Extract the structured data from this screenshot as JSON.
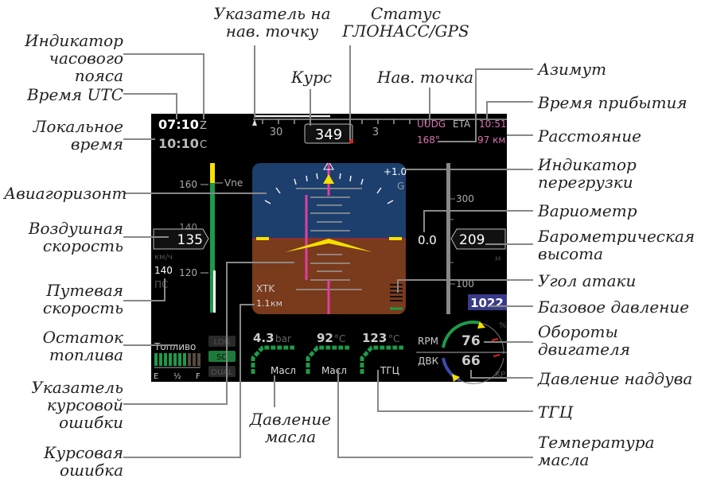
{
  "colors": {
    "sky": "#1d3f6e",
    "ground": "#7a3a1c",
    "magenta": "#e040a0",
    "yellow": "#f5e000",
    "green": "#1e9a48",
    "waypoint": "#d870b0",
    "baro_set_bg": "#3a3a8a"
  },
  "screen": {
    "time_utc": "07:10",
    "time_utc_suffix": "Z",
    "time_local": "10:10",
    "time_local_suffix": "C",
    "heading_scale": [
      "30",
      "3"
    ],
    "heading": "349",
    "waypoint": "UUDG",
    "eta_label": "ETA",
    "eta": "10:51",
    "bearing": "168°",
    "distance": "97 км",
    "g_load": "+1.0",
    "g_unit": "G",
    "speed_ticks": [
      "160",
      "140",
      "120"
    ],
    "vne_label": "Vne",
    "airspeed": "135",
    "speed_unit": "км/ч",
    "ground_speed": "140",
    "ground_speed_label": "ПС",
    "xtk_label": "XTK",
    "xtk_value": "1.1",
    "xtk_unit": "км",
    "vsi": "0.0",
    "alt_ticks": [
      "300",
      "100"
    ],
    "altitude": "209",
    "alt_unit": "м",
    "baro_setting": "1022",
    "fuel_label": "Топливо",
    "fuel_scale": [
      "E",
      "½",
      "F"
    ],
    "fuel_level": 0.7,
    "mode_buttons": [
      "LOG",
      "SD",
      "DUAL"
    ],
    "gauges": [
      {
        "value": "4.3",
        "unit": "bar",
        "label": "Масл"
      },
      {
        "value": "92",
        "unit": "°C",
        "label": "Масл"
      },
      {
        "value": "123",
        "unit": "°C",
        "label": "ТГЦ"
      }
    ],
    "rpm_label": "RPM",
    "rpm": "76",
    "rpm_unit": "%",
    "map_label": "ДВК",
    "map": "66",
    "map_unit": "КР"
  },
  "callouts": {
    "tz": "Индикатор часового пояса",
    "utc": "Время UTC",
    "local": "Локальное время",
    "horizon": "Авиагоризонт",
    "airspeed": "Воздушная скорость",
    "groundspeed": "Путевая скорость",
    "fuel": "Остаток топлива",
    "cdi": "Указатель курсовой ошибки",
    "course_error": "Курсовая ошибка",
    "nav_pointer": "Указатель на нав. точку",
    "gps": "Статус ГЛОНАСС/GPS",
    "course": "Курс",
    "waypoint": "Нав. точка",
    "azimuth": "Азимут",
    "eta": "Время прибытия",
    "distance": "Расстояние",
    "g": "Индикатор перегрузки",
    "vario": "Вариометр",
    "baro_alt": "Барометрическая высота",
    "aoa": "Угол атаки",
    "baro_set": "Базовое давление",
    "rpm": "Обороты двигателя",
    "map": "Давление наддува",
    "tgc": "ТГЦ",
    "oil_temp": "Температура масла",
    "oil_press": "Давление масла"
  }
}
